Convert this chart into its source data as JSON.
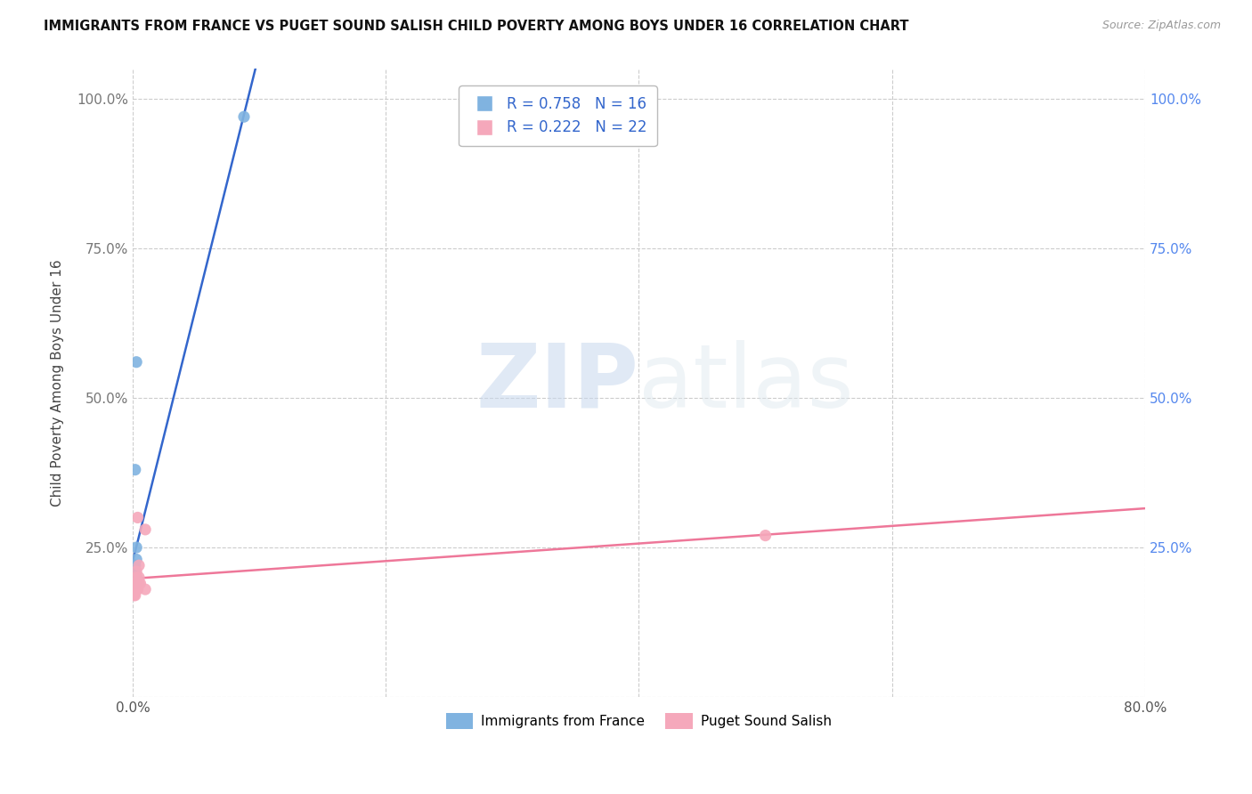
{
  "title": "IMMIGRANTS FROM FRANCE VS PUGET SOUND SALISH CHILD POVERTY AMONG BOYS UNDER 16 CORRELATION CHART",
  "source": "Source: ZipAtlas.com",
  "ylabel": "Child Poverty Among Boys Under 16",
  "blue_r": 0.758,
  "blue_n": 16,
  "pink_r": 0.222,
  "pink_n": 22,
  "blue_color": "#80b3e0",
  "pink_color": "#f5a8bb",
  "blue_line_color": "#3366cc",
  "pink_line_color": "#ee7799",
  "watermark_zip": "ZIP",
  "watermark_atlas": "atlas",
  "blue_scatter_x": [
    0.001,
    0.001,
    0.001,
    0.001,
    0.001,
    0.002,
    0.002,
    0.002,
    0.002,
    0.002,
    0.003,
    0.003,
    0.003,
    0.003,
    0.003,
    0.088
  ],
  "blue_scatter_y": [
    0.2,
    0.21,
    0.19,
    0.2,
    0.22,
    0.38,
    0.19,
    0.2,
    0.21,
    0.22,
    0.25,
    0.23,
    0.2,
    0.19,
    0.56,
    0.97
  ],
  "pink_scatter_x": [
    0.001,
    0.001,
    0.001,
    0.002,
    0.002,
    0.002,
    0.003,
    0.003,
    0.003,
    0.003,
    0.003,
    0.004,
    0.004,
    0.004,
    0.004,
    0.005,
    0.005,
    0.005,
    0.006,
    0.01,
    0.01,
    0.5
  ],
  "pink_scatter_y": [
    0.19,
    0.18,
    0.17,
    0.17,
    0.18,
    0.19,
    0.18,
    0.19,
    0.19,
    0.2,
    0.21,
    0.19,
    0.18,
    0.19,
    0.3,
    0.19,
    0.2,
    0.22,
    0.19,
    0.18,
    0.28,
    0.27
  ],
  "xmin": 0.0,
  "xmax": 0.8,
  "ymin": 0.0,
  "ymax": 1.05,
  "xtick_vals": [
    0.0,
    0.2,
    0.4,
    0.6,
    0.8
  ],
  "xtick_labels": [
    "0.0%",
    "",
    "",
    "",
    "80.0%"
  ],
  "ytick_vals": [
    0.0,
    0.25,
    0.5,
    0.75,
    1.0
  ],
  "ytick_labels_left": [
    "",
    "25.0%",
    "50.0%",
    "75.0%",
    "100.0%"
  ],
  "ytick_labels_right": [
    "",
    "25.0%",
    "50.0%",
    "75.0%",
    "100.0%"
  ],
  "legend_label_blue": "Immigrants from France",
  "legend_label_pink": "Puget Sound Salish"
}
